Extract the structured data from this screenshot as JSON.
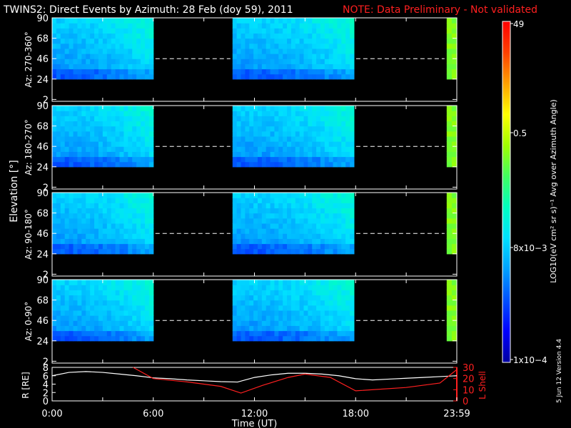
{
  "header": {
    "title": "TWINS2: Direct Events by Azimuth: 28 Feb (doy  59), 2011",
    "note": "NOTE: Data Preliminary - Not validated",
    "note_color": "#ff2020"
  },
  "footer": {
    "version": "5 Jun 12  Version 4.4"
  },
  "chart_data": [
    {
      "type": "heatmap",
      "shared_ylabel": "Elevation [°]",
      "xlim": [
        0,
        24
      ],
      "ylim": [
        0,
        90
      ],
      "yticks": [
        "2",
        "24",
        "46",
        "68",
        "90"
      ],
      "panels": [
        {
          "label": "Az: 270-360°"
        },
        {
          "label": "Az: 180-270°"
        },
        {
          "label": "Az: 90-180°"
        },
        {
          "label": "Az: 0-90°"
        }
      ],
      "coverage_hours": [
        [
          0.0,
          6.0
        ],
        [
          10.7,
          17.9
        ],
        [
          23.4,
          24.0
        ]
      ],
      "coverage_elevation": [
        24,
        90
      ],
      "colorbar": {
        "label": "LOG10(eV cm² sr s)⁻¹ Avg over Azimuth Angle)",
        "ticks": [
          "49",
          "0.5",
          "8x10−3",
          "1x10−4"
        ],
        "colors": [
          "#0000a0",
          "#0000ff",
          "#0050ff",
          "#00a0ff",
          "#00e0ff",
          "#00ffc0",
          "#40ff60",
          "#a0ff00",
          "#ffff00",
          "#ffa000",
          "#ff4000",
          "#ff0000"
        ]
      }
    },
    {
      "type": "line",
      "x": [
        0,
        1,
        2,
        3,
        4,
        5,
        6,
        7,
        8,
        9,
        10,
        11,
        12,
        13,
        14,
        15,
        16,
        17,
        18,
        19,
        20,
        21,
        22,
        23,
        24
      ],
      "xticks": [
        "0:00",
        "6:00",
        "12:00",
        "18:00",
        "23:59"
      ],
      "xlabel": "Time (UT)",
      "series": [
        {
          "name": "R [RE]",
          "color": "#ffffff",
          "axis": "left",
          "values": [
            6.0,
            6.8,
            7.0,
            6.8,
            6.4,
            6.0,
            5.5,
            5.3,
            5.0,
            4.8,
            4.6,
            4.5,
            5.6,
            6.2,
            6.6,
            6.6,
            6.4,
            6.0,
            5.3,
            5.0,
            5.2,
            5.4,
            5.6,
            5.8,
            6.0
          ]
        },
        {
          "name": "L Shell",
          "color": "#ff2020",
          "axis": "right",
          "x": [
            4.8,
            6.0,
            8.0,
            10.0,
            11.2,
            12.5,
            14.0,
            15.0,
            16.5,
            18.0,
            21.0,
            23.0,
            24.0
          ],
          "values": [
            30,
            20,
            17,
            13,
            7,
            14,
            21,
            24,
            21,
            9,
            12,
            16,
            28
          ]
        }
      ],
      "ylim_left": [
        0,
        8
      ],
      "yticks_left": [
        "0",
        "2",
        "4",
        "6",
        "8"
      ],
      "ylabel_left": "R [RE]",
      "ylim_right": [
        0,
        30
      ],
      "yticks_right": [
        "0",
        "10",
        "20",
        "30"
      ],
      "ylabel_right": "L Shell"
    }
  ]
}
